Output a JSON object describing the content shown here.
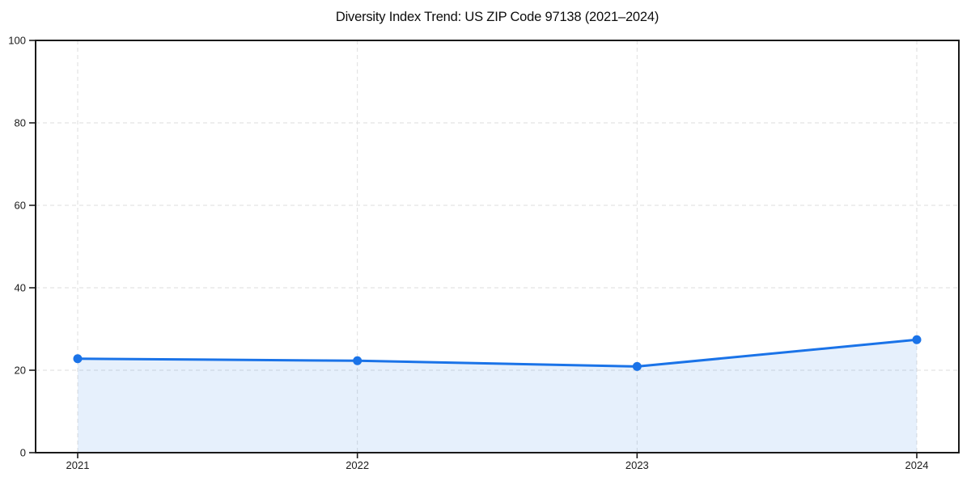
{
  "page": {
    "background": "#ffffff"
  },
  "chart_data": {
    "type": "line",
    "title": "Diversity Index Trend: US ZIP Code 97138 (2021–2024)",
    "categories": [
      "2021",
      "2022",
      "2023",
      "2024"
    ],
    "series": [
      {
        "name": "Diversity Index",
        "values": [
          22.8,
          22.3,
          20.9,
          27.4
        ]
      }
    ],
    "xlabel": "",
    "ylabel": "",
    "ylim": [
      0,
      100
    ],
    "y_ticks": [
      0,
      20,
      40,
      60,
      80,
      100
    ],
    "grid": true,
    "grid_style": "dashed",
    "legend_position": "none",
    "area_fill": true,
    "markers": true,
    "colors": {
      "line": "#1a73e8",
      "marker": "#1a73e8",
      "area_fill": "rgba(26,115,232,0.11)",
      "grid": "#dedede",
      "axis": "#1a1a1a",
      "tick_text": "#1a1a1a",
      "title_text": "#0d0d0d",
      "background": "#ffffff"
    }
  }
}
